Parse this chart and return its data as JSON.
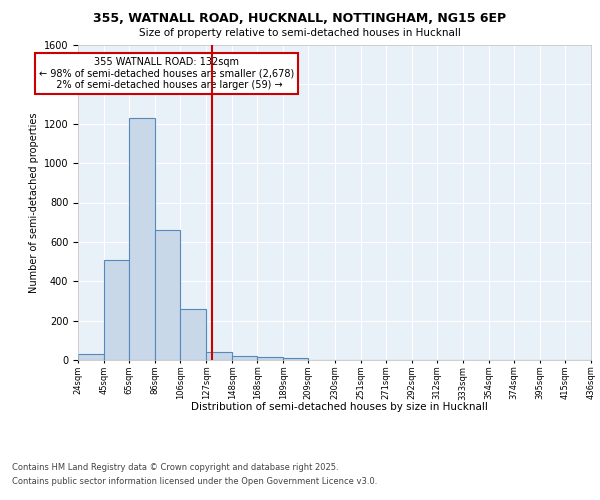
{
  "title1": "355, WATNALL ROAD, HUCKNALL, NOTTINGHAM, NG15 6EP",
  "title2": "Size of property relative to semi-detached houses in Hucknall",
  "xlabel": "Distribution of semi-detached houses by size in Hucknall",
  "ylabel": "Number of semi-detached properties",
  "bin_labels": [
    "24sqm",
    "45sqm",
    "65sqm",
    "86sqm",
    "106sqm",
    "127sqm",
    "148sqm",
    "168sqm",
    "189sqm",
    "209sqm",
    "230sqm",
    "251sqm",
    "271sqm",
    "292sqm",
    "312sqm",
    "333sqm",
    "354sqm",
    "374sqm",
    "395sqm",
    "415sqm",
    "436sqm"
  ],
  "bin_edges": [
    24,
    45,
    65,
    86,
    106,
    127,
    148,
    168,
    189,
    209,
    230,
    251,
    271,
    292,
    312,
    333,
    354,
    374,
    395,
    415,
    436
  ],
  "counts": [
    30,
    510,
    1230,
    660,
    260,
    40,
    20,
    15,
    10,
    0,
    0,
    0,
    0,
    0,
    0,
    0,
    0,
    0,
    0,
    0
  ],
  "bar_color": "#c8d8e8",
  "bar_edge_color": "#5588bb",
  "property_line_x": 132,
  "property_line_color": "#cc0000",
  "annotation_text": "355 WATNALL ROAD: 132sqm\n← 98% of semi-detached houses are smaller (2,678)\n  2% of semi-detached houses are larger (59) →",
  "annotation_box_color": "#ffffff",
  "annotation_box_edge_color": "#cc0000",
  "ylim": [
    0,
    1600
  ],
  "yticks": [
    0,
    200,
    400,
    600,
    800,
    1000,
    1200,
    1400,
    1600
  ],
  "background_color": "#e8f0f8",
  "grid_color": "#ffffff",
  "footer_line1": "Contains HM Land Registry data © Crown copyright and database right 2025.",
  "footer_line2": "Contains public sector information licensed under the Open Government Licence v3.0."
}
